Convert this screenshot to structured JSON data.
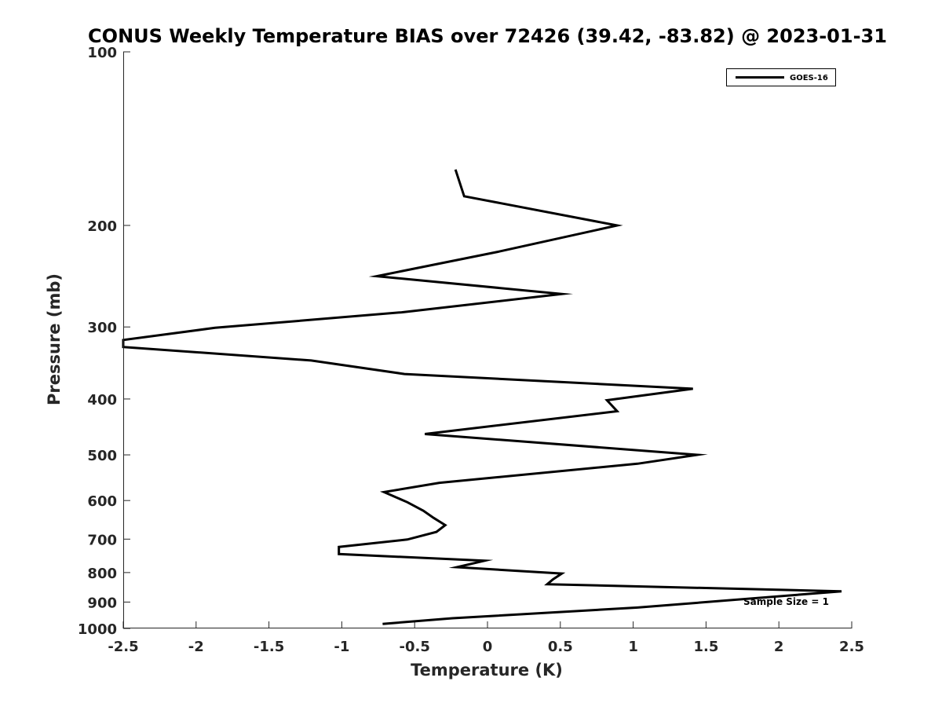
{
  "chart_data": {
    "type": "line",
    "title": "CONUS Weekly Temperature BIAS over 72426 (39.42, -83.82) @ 2023-01-31",
    "xlabel": "Temperature (K)",
    "ylabel": "Pressure (mb)",
    "xlim": [
      -2.5,
      2.5
    ],
    "ylim": [
      1000,
      100
    ],
    "yscale": "log",
    "y_reversed": true,
    "x_ticks": [
      "-2.5",
      "-2",
      "-1.5",
      "-1",
      "-0.5",
      "0",
      "0.5",
      "1",
      "1.5",
      "2",
      "2.5"
    ],
    "y_ticks": [
      "100",
      "200",
      "300",
      "400",
      "500",
      "600",
      "700",
      "800",
      "900",
      "1000"
    ],
    "grid": false,
    "legend_position": "top-right",
    "series": [
      {
        "name": "GOES-16",
        "color": "#000000",
        "points": [
          {
            "x": -0.22,
            "y": 160
          },
          {
            "x": -0.16,
            "y": 178
          },
          {
            "x": 0.89,
            "y": 200
          },
          {
            "x": 0.08,
            "y": 222
          },
          {
            "x": -0.76,
            "y": 245
          },
          {
            "x": 0.51,
            "y": 263
          },
          {
            "x": -0.59,
            "y": 283
          },
          {
            "x": -1.87,
            "y": 301
          },
          {
            "x": -2.5,
            "y": 316
          },
          {
            "x": -2.5,
            "y": 325
          },
          {
            "x": -1.21,
            "y": 343
          },
          {
            "x": -0.57,
            "y": 362
          },
          {
            "x": 1.41,
            "y": 384
          },
          {
            "x": 0.82,
            "y": 402
          },
          {
            "x": 0.89,
            "y": 420
          },
          {
            "x": -0.43,
            "y": 460
          },
          {
            "x": 1.44,
            "y": 500
          },
          {
            "x": 1.03,
            "y": 518
          },
          {
            "x": -0.33,
            "y": 559
          },
          {
            "x": -0.71,
            "y": 580
          },
          {
            "x": -0.55,
            "y": 604
          },
          {
            "x": -0.44,
            "y": 625
          },
          {
            "x": -0.37,
            "y": 643
          },
          {
            "x": -0.29,
            "y": 662
          },
          {
            "x": -0.35,
            "y": 680
          },
          {
            "x": -0.55,
            "y": 701
          },
          {
            "x": -1.02,
            "y": 722
          },
          {
            "x": -1.02,
            "y": 743
          },
          {
            "x": -0.02,
            "y": 763
          },
          {
            "x": -0.21,
            "y": 783
          },
          {
            "x": 0.51,
            "y": 803
          },
          {
            "x": 0.45,
            "y": 822
          },
          {
            "x": 0.41,
            "y": 838
          },
          {
            "x": 2.43,
            "y": 862
          },
          {
            "x": 1.03,
            "y": 920
          },
          {
            "x": -0.24,
            "y": 960
          },
          {
            "x": -0.72,
            "y": 982
          }
        ]
      }
    ],
    "annotations": [
      {
        "text": "Sample Size = 1",
        "x": 2.05,
        "y": 910
      }
    ]
  }
}
